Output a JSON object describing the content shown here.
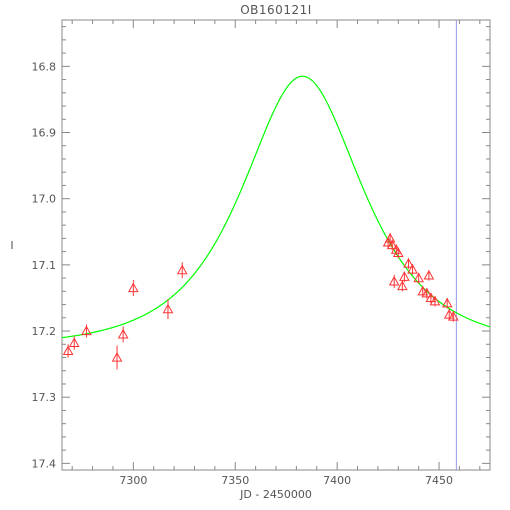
{
  "chart_data": {
    "type": "scatter",
    "title": "OB160121I",
    "xlabel": "JD - 2450000",
    "ylabel": "I",
    "xlim": [
      7265,
      7475
    ],
    "ylim": [
      17.41,
      16.73
    ],
    "y_inverted": true,
    "grid": false,
    "x_ticks": [
      7300,
      7350,
      7400,
      7450
    ],
    "y_ticks": [
      16.8,
      16.9,
      17.0,
      17.1,
      17.2,
      17.3,
      17.4
    ],
    "x_tick_labels": [
      "7300",
      "7350",
      "7400",
      "7450"
    ],
    "y_tick_labels": [
      "16.8",
      "16.9",
      "17.0",
      "17.1",
      "17.2",
      "17.3",
      "17.4"
    ],
    "model_curve": {
      "color": "#00ff00",
      "kind": "microlensing-fit",
      "peak_x": 7383,
      "peak_y": 16.815,
      "baseline_y": 17.225,
      "left_at_xmin_y": 17.21,
      "right_at_xmax_y": 17.198
    },
    "vertical_marker": {
      "x": 7458.5,
      "color": "#9999ee"
    },
    "series": [
      {
        "marker": "open-triangle",
        "color": "#ff3333",
        "points": [
          {
            "x": 7268,
            "y": 17.23,
            "err": 0.01
          },
          {
            "x": 7271,
            "y": 17.218,
            "err": 0.01
          },
          {
            "x": 7277,
            "y": 17.2,
            "err": 0.01
          },
          {
            "x": 7292,
            "y": 17.24,
            "err": 0.018
          },
          {
            "x": 7295,
            "y": 17.205,
            "err": 0.012
          },
          {
            "x": 7300,
            "y": 17.135,
            "err": 0.012
          },
          {
            "x": 7317,
            "y": 17.167,
            "err": 0.015
          },
          {
            "x": 7324,
            "y": 17.108,
            "err": 0.012
          },
          {
            "x": 7425,
            "y": 17.066,
            "err": 0.008
          },
          {
            "x": 7426,
            "y": 17.06,
            "err": 0.008
          },
          {
            "x": 7427,
            "y": 17.07,
            "err": 0.008
          },
          {
            "x": 7428,
            "y": 17.125,
            "err": 0.01
          },
          {
            "x": 7429,
            "y": 17.077,
            "err": 0.008
          },
          {
            "x": 7430,
            "y": 17.082,
            "err": 0.008
          },
          {
            "x": 7432,
            "y": 17.132,
            "err": 0.008
          },
          {
            "x": 7433,
            "y": 17.118,
            "err": 0.008
          },
          {
            "x": 7435,
            "y": 17.098,
            "err": 0.008
          },
          {
            "x": 7437,
            "y": 17.107,
            "err": 0.008
          },
          {
            "x": 7440,
            "y": 17.12,
            "err": 0.008
          },
          {
            "x": 7442,
            "y": 17.14,
            "err": 0.008
          },
          {
            "x": 7444,
            "y": 17.143,
            "err": 0.008
          },
          {
            "x": 7445,
            "y": 17.116,
            "err": 0.008
          },
          {
            "x": 7446,
            "y": 17.15,
            "err": 0.008
          },
          {
            "x": 7448,
            "y": 17.155,
            "err": 0.008
          },
          {
            "x": 7454,
            "y": 17.158,
            "err": 0.008
          },
          {
            "x": 7455,
            "y": 17.175,
            "err": 0.008
          },
          {
            "x": 7457,
            "y": 17.178,
            "err": 0.008
          }
        ]
      }
    ]
  }
}
